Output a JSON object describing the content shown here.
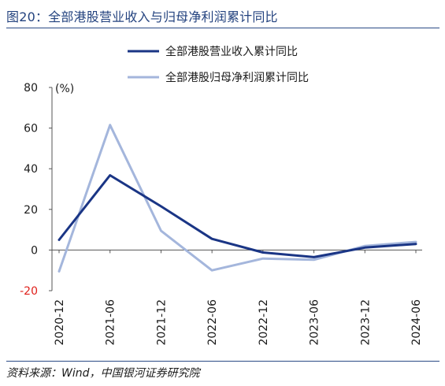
{
  "header": {
    "title": "图20：全部港股营业收入与归母净利润累计同比"
  },
  "footer": {
    "source": "资料来源：Wind，中国银河证券研究院"
  },
  "colors": {
    "title": "#24437f",
    "rule": "#2a4a85",
    "series_revenue": "#1a3585",
    "series_profit": "#a4b6dc",
    "negative_tick": "#e0201b",
    "axis": "#555555"
  },
  "chart_data": {
    "type": "line",
    "title": "",
    "xlabel": "",
    "ylabel": "(%)",
    "ylim": [
      -20,
      80
    ],
    "yticks": [
      80,
      60,
      40,
      20,
      0,
      -20
    ],
    "categories": [
      "2020-12",
      "2021-06",
      "2021-12",
      "2022-06",
      "2022-12",
      "2023-06",
      "2023-12",
      "2024-06"
    ],
    "legend_position": "top-center",
    "grid": false,
    "series": [
      {
        "name": "全部港股营业收入累计同比",
        "values": [
          5,
          36.8,
          21.5,
          5.5,
          -1.2,
          -3.5,
          1.2,
          3
        ]
      },
      {
        "name": "全部港股归母净利润累计同比",
        "values": [
          -10.5,
          61.5,
          9.5,
          -10,
          -4.2,
          -4.8,
          2,
          4
        ]
      }
    ]
  }
}
